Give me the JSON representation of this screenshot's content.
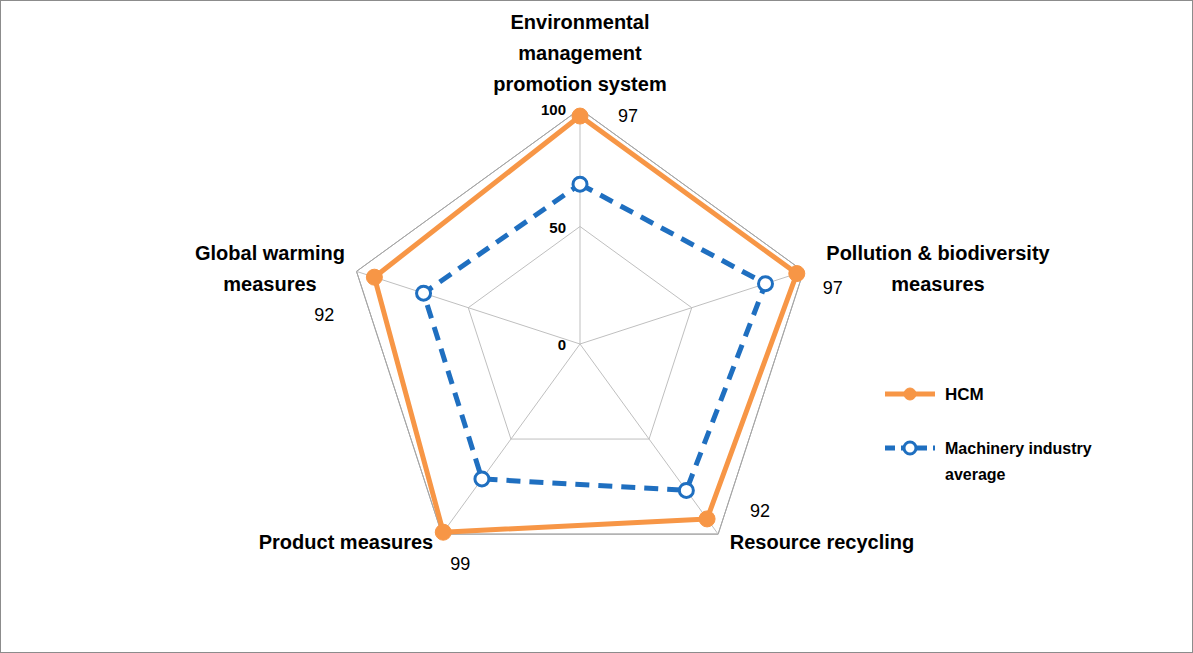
{
  "chart_data": {
    "type": "radar",
    "categories": [
      "Environmental management promotion system",
      "Pollution & biodiversity measures",
      "Resource recycling",
      "Product measures",
      "Global warming measures"
    ],
    "series": [
      {
        "name": "HCM",
        "color": "#f79646",
        "marker": "circle",
        "line_style": "solid",
        "data_labels": true,
        "values": [
          97,
          97,
          92,
          99,
          92
        ]
      },
      {
        "name": "Machinery industry average",
        "color": "#1f6fc0",
        "marker": "open-circle",
        "line_style": "dashed",
        "values": [
          68,
          83,
          77,
          71,
          70
        ]
      }
    ],
    "ylim": [
      0,
      100
    ],
    "yticks": [
      0,
      50,
      100
    ],
    "grid": true,
    "legend": "right"
  }
}
